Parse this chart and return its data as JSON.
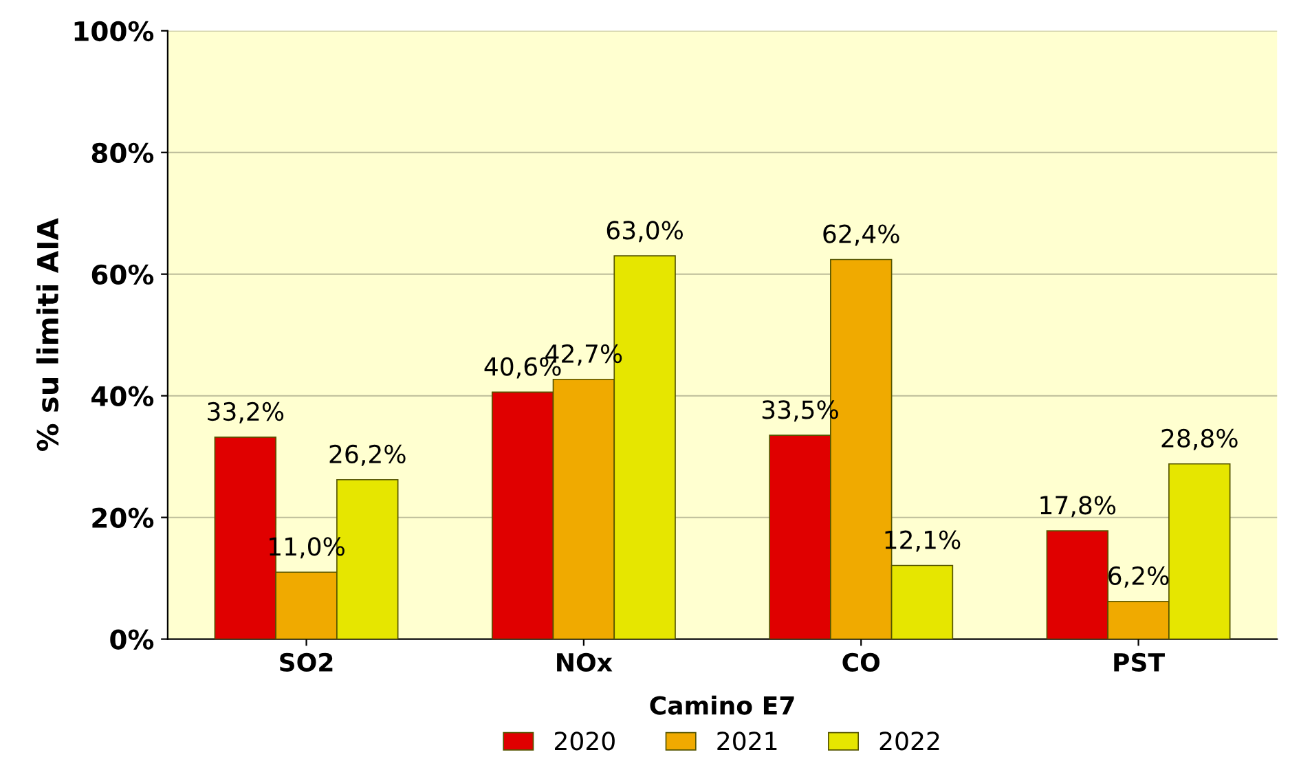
{
  "chart_data": {
    "type": "bar",
    "xlabel": "Camino E7",
    "ylabel": "% su limiti AIA",
    "categories": [
      "SO2",
      "NOx",
      "CO",
      "PST"
    ],
    "series": [
      {
        "name": "2020",
        "color": "#e00000",
        "values": [
          33.2,
          40.6,
          33.5,
          17.8
        ],
        "value_labels": [
          "33,2%",
          "40,6%",
          "33,5%",
          "17,8%"
        ]
      },
      {
        "name": "2021",
        "color": "#f0aa00",
        "values": [
          11.0,
          42.7,
          62.4,
          6.2
        ],
        "value_labels": [
          "11,0%",
          "42,7%",
          "62,4%",
          "6,2%"
        ]
      },
      {
        "name": "2022",
        "color": "#e6e600",
        "values": [
          26.2,
          63.0,
          12.1,
          28.8
        ],
        "value_labels": [
          "26,2%",
          "63,0%",
          "12,1%",
          "28,8%"
        ]
      }
    ],
    "ylim": [
      0,
      100
    ],
    "yticks": [
      {
        "value": 0,
        "label": "0%"
      },
      {
        "value": 20,
        "label": "20%"
      },
      {
        "value": 40,
        "label": "40%"
      },
      {
        "value": 60,
        "label": "60%"
      },
      {
        "value": 80,
        "label": "80%"
      },
      {
        "value": 100,
        "label": "100%"
      }
    ],
    "grid": "y",
    "legend": "bottom"
  }
}
